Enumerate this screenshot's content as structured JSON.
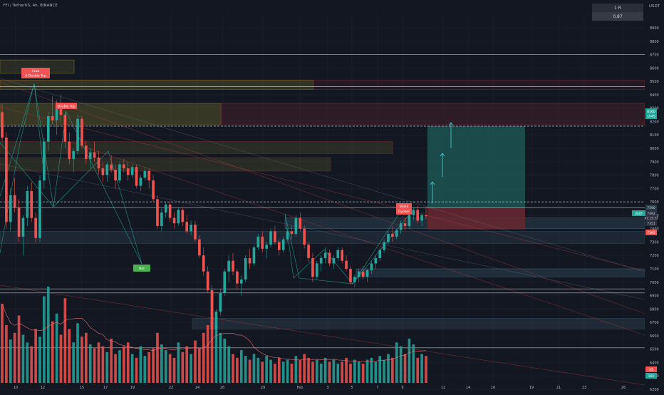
{
  "header": {
    "symbol_line": "YFI / TetherUS, 4h, BINANCE",
    "currency": "USDT",
    "widget_top": "1 R",
    "widget_bottom": "0.87"
  },
  "colors": {
    "background": "#131722",
    "up": "#26a69a",
    "down": "#ef5350",
    "grid": "#1e2230",
    "axis_text": "#b2b5be",
    "supply_zone": "#6b6b2a",
    "demand_zone": "#3a5566",
    "target_zone": "#1d5c58",
    "stop_zone": "#6a2830",
    "pattern_line": "#26a69a",
    "label_red": "#f05454",
    "label_green": "#4caf50"
  },
  "annotations": {
    "double_top_a_line1": "Crab",
    "double_top_a_line2": "// Double Top",
    "double_top_b": "Double Top",
    "shark_line1": "Shark",
    "shark_line2": "Cypher",
    "green_label": "Bat"
  },
  "price_tags": {
    "target": "8160",
    "target2": "1h45",
    "entry": "7590",
    "current": "7492",
    "current2": "01:15:33",
    "stop": "7395",
    "stop_level": "7351",
    "volume_top": "25",
    "volume_bottom": "102"
  },
  "chart_data": {
    "type": "candlestick",
    "y_ticks": [
      "8900",
      "8800",
      "8700",
      "8600",
      "8500",
      "8400",
      "8300",
      "8200",
      "8100",
      "8000",
      "7900",
      "7800",
      "7700",
      "7600",
      "7500",
      "7400",
      "7300",
      "7200",
      "7100",
      "7000",
      "6900",
      "6800",
      "6700",
      "6600",
      "6500",
      "6400",
      "6300",
      "6200"
    ],
    "x_ticks": [
      "10",
      "12",
      "15",
      "17",
      "19",
      "22",
      "24",
      "26",
      "29",
      "Feb",
      "3",
      "5",
      "7",
      "9",
      "12",
      "14",
      "16",
      "19",
      "21",
      "23",
      "26"
    ],
    "ylim": [
      6200,
      8950
    ],
    "grid": true,
    "horizontal_levels": [
      8700,
      8460,
      8165,
      7600,
      7555,
      6950,
      6920,
      6510
    ],
    "candles": [
      [
        8270,
        8330,
        8050,
        8080
      ],
      [
        8080,
        8120,
        7400,
        7450
      ],
      [
        7450,
        7700,
        7380,
        7650
      ],
      [
        7650,
        7780,
        7520,
        7560
      ],
      [
        7560,
        7620,
        7300,
        7340
      ],
      [
        7340,
        7500,
        7200,
        7480
      ],
      [
        7480,
        7720,
        7420,
        7680
      ],
      [
        7680,
        7750,
        7450,
        7480
      ],
      [
        7480,
        7520,
        7300,
        7330
      ],
      [
        7330,
        7800,
        7300,
        7760
      ],
      [
        7760,
        8080,
        7700,
        8050
      ],
      [
        8050,
        8270,
        7980,
        8240
      ],
      [
        8240,
        8390,
        8180,
        8210
      ],
      [
        8210,
        8360,
        8100,
        8320
      ],
      [
        8320,
        8400,
        8200,
        8250
      ],
      [
        8250,
        8280,
        8000,
        8050
      ],
      [
        8050,
        8120,
        7880,
        7920
      ],
      [
        7920,
        8000,
        7820,
        7980
      ],
      [
        7980,
        8250,
        7950,
        8220
      ],
      [
        8220,
        8240,
        8000,
        8020
      ],
      [
        8020,
        8060,
        7880,
        7920
      ],
      [
        7920,
        8000,
        7850,
        7970
      ],
      [
        7970,
        8050,
        7900,
        7930
      ],
      [
        7930,
        7980,
        7800,
        7850
      ],
      [
        7850,
        7900,
        7750,
        7800
      ],
      [
        7800,
        7900,
        7750,
        7880
      ],
      [
        7880,
        7950,
        7820,
        7840
      ],
      [
        7840,
        7880,
        7700,
        7760
      ],
      [
        7760,
        7900,
        7740,
        7880
      ],
      [
        7880,
        7920,
        7820,
        7850
      ],
      [
        7850,
        7900,
        7760,
        7800
      ],
      [
        7800,
        7880,
        7780,
        7860
      ],
      [
        7860,
        7880,
        7700,
        7720
      ],
      [
        7720,
        7800,
        7680,
        7780
      ],
      [
        7780,
        7860,
        7760,
        7830
      ],
      [
        7830,
        7850,
        7700,
        7760
      ],
      [
        7760,
        7800,
        7600,
        7620
      ],
      [
        7620,
        7650,
        7400,
        7420
      ],
      [
        7420,
        7550,
        7380,
        7520
      ],
      [
        7520,
        7600,
        7480,
        7580
      ],
      [
        7580,
        7600,
        7450,
        7480
      ],
      [
        7480,
        7520,
        7400,
        7440
      ],
      [
        7440,
        7560,
        7420,
        7540
      ],
      [
        7540,
        7560,
        7420,
        7450
      ],
      [
        7450,
        7500,
        7360,
        7380
      ],
      [
        7380,
        7460,
        7350,
        7430
      ],
      [
        7430,
        7460,
        7300,
        7320
      ],
      [
        7320,
        7350,
        7180,
        7200
      ],
      [
        7200,
        7260,
        7050,
        7080
      ],
      [
        7080,
        7120,
        6920,
        6940
      ],
      [
        6940,
        6980,
        6600,
        6650
      ],
      [
        6650,
        6800,
        6560,
        6780
      ],
      [
        6780,
        6950,
        6750,
        6920
      ],
      [
        6920,
        7100,
        6900,
        7080
      ],
      [
        7080,
        7200,
        7000,
        7160
      ],
      [
        7160,
        7220,
        7050,
        7080
      ],
      [
        7080,
        7100,
        6950,
        6990
      ],
      [
        6990,
        7050,
        6900,
        7020
      ],
      [
        7020,
        7200,
        7000,
        7180
      ],
      [
        7180,
        7250,
        7100,
        7140
      ],
      [
        7140,
        7280,
        7120,
        7260
      ],
      [
        7260,
        7360,
        7240,
        7340
      ],
      [
        7340,
        7380,
        7220,
        7250
      ],
      [
        7250,
        7300,
        7180,
        7280
      ],
      [
        7280,
        7400,
        7260,
        7380
      ],
      [
        7380,
        7420,
        7280,
        7300
      ],
      [
        7300,
        7320,
        7200,
        7240
      ],
      [
        7240,
        7340,
        7220,
        7320
      ],
      [
        7320,
        7400,
        7300,
        7380
      ],
      [
        7380,
        7420,
        7320,
        7360
      ],
      [
        7360,
        7500,
        7340,
        7480
      ],
      [
        7480,
        7520,
        7380,
        7400
      ],
      [
        7400,
        7420,
        7250,
        7280
      ],
      [
        7280,
        7300,
        7150,
        7180
      ],
      [
        7180,
        7220,
        7000,
        7040
      ],
      [
        7040,
        7160,
        7020,
        7140
      ],
      [
        7140,
        7200,
        7080,
        7180
      ],
      [
        7180,
        7260,
        7140,
        7220
      ],
      [
        7220,
        7240,
        7120,
        7140
      ],
      [
        7140,
        7200,
        7100,
        7180
      ],
      [
        7180,
        7260,
        7160,
        7240
      ],
      [
        7240,
        7260,
        7140,
        7160
      ],
      [
        7160,
        7200,
        7080,
        7100
      ],
      [
        7100,
        7120,
        6980,
        7000
      ],
      [
        7000,
        7060,
        6960,
        7040
      ],
      [
        7040,
        7100,
        7000,
        7080
      ],
      [
        7080,
        7120,
        7020,
        7040
      ],
      [
        7040,
        7100,
        7000,
        7090
      ],
      [
        7090,
        7160,
        7060,
        7140
      ],
      [
        7140,
        7200,
        7100,
        7180
      ],
      [
        7180,
        7260,
        7160,
        7240
      ],
      [
        7240,
        7320,
        7220,
        7300
      ],
      [
        7300,
        7380,
        7280,
        7360
      ],
      [
        7360,
        7420,
        7300,
        7340
      ],
      [
        7340,
        7400,
        7320,
        7390
      ],
      [
        7390,
        7460,
        7360,
        7440
      ],
      [
        7440,
        7480,
        7380,
        7420
      ],
      [
        7420,
        7520,
        7400,
        7500
      ],
      [
        7500,
        7560,
        7460,
        7540
      ],
      [
        7540,
        7570,
        7440,
        7460
      ],
      [
        7460,
        7520,
        7420,
        7500
      ],
      [
        7500,
        7560,
        7470,
        7492
      ]
    ],
    "volumes": [
      820,
      600,
      450,
      520,
      700,
      500,
      420,
      380,
      560,
      480,
      900,
      1000,
      640,
      720,
      500,
      880,
      560,
      420,
      620,
      480,
      520,
      400,
      360,
      420,
      380,
      320,
      460,
      300,
      340,
      380,
      420,
      300,
      260,
      380,
      280,
      320,
      360,
      520,
      400,
      340,
      300,
      260,
      420,
      320,
      380,
      300,
      440,
      360,
      520,
      600,
      940,
      640,
      520,
      460,
      380,
      300,
      260,
      340,
      280,
      240,
      300,
      260,
      220,
      280,
      240,
      200,
      260,
      220,
      240,
      200,
      280,
      240,
      300,
      260,
      220,
      240,
      200,
      260,
      220,
      240,
      200,
      220,
      260,
      200,
      240,
      220,
      200,
      240,
      260,
      220,
      280,
      240,
      300,
      260,
      420,
      380,
      300,
      460,
      400,
      260,
      300,
      280
    ]
  }
}
